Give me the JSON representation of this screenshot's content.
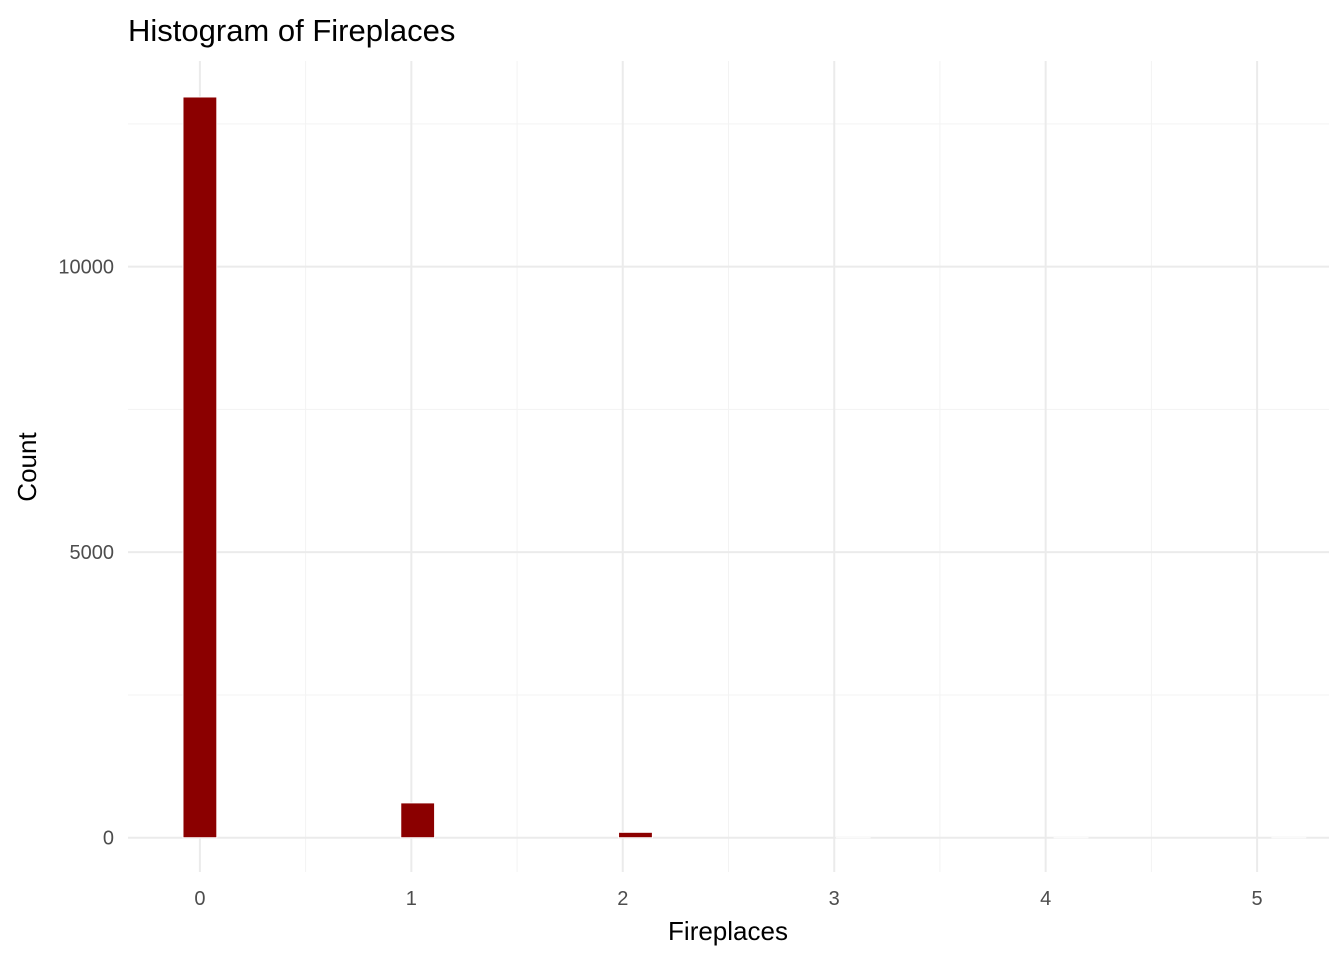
{
  "chart_data": {
    "type": "bar",
    "title": "Histogram of Fireplaces",
    "xlabel": "Fireplaces",
    "ylabel": "Count",
    "x_ticks": [
      0,
      1,
      2,
      3,
      4,
      5
    ],
    "y_ticks": [
      0,
      5000,
      10000
    ],
    "xlim": [
      -0.34,
      5.34
    ],
    "ylim": [
      -600,
      13600
    ],
    "grid": true,
    "bar_color": "#8B0000",
    "bins": [
      {
        "x0": -0.08,
        "x1": 0.08,
        "value": 12970
      },
      {
        "x0": 0.95,
        "x1": 1.11,
        "value": 610
      },
      {
        "x0": 1.98,
        "x1": 2.14,
        "value": 95
      },
      {
        "x0": 3.01,
        "x1": 3.17,
        "value": 0
      },
      {
        "x0": 4.04,
        "x1": 4.2,
        "value": 0
      },
      {
        "x0": 5.07,
        "x1": 5.23,
        "value": 0
      }
    ]
  }
}
